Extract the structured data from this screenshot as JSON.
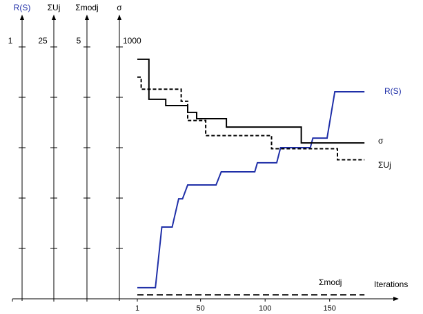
{
  "chart_data": {
    "type": "line",
    "xlabel": "Iterations",
    "xlim": [
      1,
      202
    ],
    "xticks": [
      1,
      50,
      100,
      150
    ],
    "y_axes": [
      {
        "title": "R(S)",
        "ylim": [
          0,
          1
        ],
        "yticks": [
          1
        ],
        "color": "#1f2fa8"
      },
      {
        "title": "ΣUj",
        "ylim": [
          0,
          25
        ],
        "yticks": [
          25
        ],
        "color": "#000000"
      },
      {
        "title": "Σmodj",
        "ylim": [
          0,
          5
        ],
        "yticks": [
          5
        ],
        "color": "#000000"
      },
      {
        "title": "σ",
        "ylim": [
          0,
          1000
        ],
        "yticks": [
          1000
        ],
        "color": "#000000"
      }
    ],
    "series": [
      {
        "name": "R(S)",
        "axis": 0,
        "color": "#1f2fa8",
        "dash": "solid",
        "x": [
          1,
          15,
          20,
          28,
          33,
          36,
          40,
          62,
          66,
          92,
          94,
          109,
          112,
          135,
          137,
          148,
          154,
          177
        ],
        "values": [
          0.044,
          0.044,
          0.285,
          0.285,
          0.397,
          0.397,
          0.452,
          0.452,
          0.504,
          0.504,
          0.54,
          0.54,
          0.6,
          0.6,
          0.638,
          0.638,
          0.822,
          0.822
        ]
      },
      {
        "name": "σ",
        "axis": 3,
        "color": "#000000",
        "dash": "solid",
        "x": [
          1,
          10,
          10,
          23,
          23,
          40,
          40,
          47,
          47,
          70,
          70,
          128,
          128,
          177
        ],
        "values": [
          951,
          951,
          792,
          792,
          767,
          767,
          740,
          740,
          715,
          715,
          682,
          682,
          619,
          619
        ]
      },
      {
        "name": "ΣUj",
        "axis": 1,
        "color": "#000000",
        "dash": "short",
        "x": [
          1,
          4,
          4,
          35,
          35,
          40,
          40,
          54,
          54,
          105,
          105,
          156,
          156,
          177
        ],
        "values": [
          22,
          22,
          20.8,
          20.8,
          19.6,
          19.6,
          17.7,
          17.7,
          16.2,
          16.2,
          14.9,
          14.9,
          13.8,
          13.8
        ]
      },
      {
        "name": "Σmodj",
        "axis": 2,
        "color": "#000000",
        "dash": "long",
        "x": [
          1,
          177
        ],
        "values": [
          0.08,
          0.08
        ]
      }
    ]
  }
}
